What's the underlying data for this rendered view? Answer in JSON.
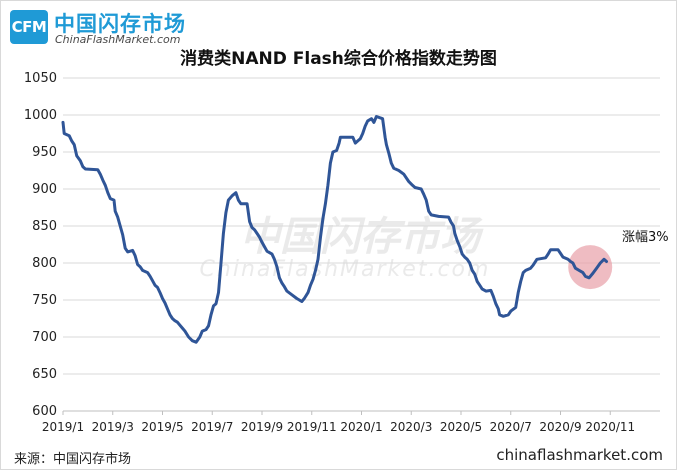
{
  "brand": {
    "logo_mark": "CFM",
    "name_cn": "中国闪存市场",
    "name_en": "ChinaFlashMarket.com"
  },
  "watermark": {
    "text_cn": "中国闪存市场",
    "text_en": "ChinaFlashMarket.com"
  },
  "footer": {
    "source": "来源：中国闪存市场",
    "site": "chinaflashmarket.com"
  },
  "colors": {
    "line": "#2f5597",
    "highlight": "#e8a0a8",
    "brand": "#1f9ad6"
  },
  "chart_data": {
    "type": "line",
    "title": "消费类NAND Flash综合价格指数走势图",
    "xlabel": "",
    "ylabel": "",
    "ylim": [
      600,
      1050
    ],
    "yticks": [
      600,
      650,
      700,
      750,
      800,
      850,
      900,
      950,
      1000,
      1050
    ],
    "xlim": [
      0,
      24
    ],
    "xticks": [
      {
        "x": 0,
        "label": "2019/1"
      },
      {
        "x": 2,
        "label": "2019/3"
      },
      {
        "x": 4,
        "label": "2019/5"
      },
      {
        "x": 6,
        "label": "2019/7"
      },
      {
        "x": 8,
        "label": "2019/9"
      },
      {
        "x": 10,
        "label": "2019/11"
      },
      {
        "x": 12,
        "label": "2020/1"
      },
      {
        "x": 14,
        "label": "2020/3"
      },
      {
        "x": 16,
        "label": "2020/5"
      },
      {
        "x": 18,
        "label": "2020/7"
      },
      {
        "x": 20,
        "label": "2020/9"
      },
      {
        "x": 22,
        "label": "2020/11"
      }
    ],
    "grid": "horizontal",
    "annotation": {
      "text": "涨幅3%",
      "x": 22.8,
      "y": 790
    },
    "series": [
      {
        "points": [
          [
            0.0,
            990
          ],
          [
            0.05,
            975
          ],
          [
            0.25,
            972
          ],
          [
            0.35,
            965
          ],
          [
            0.45,
            960
          ],
          [
            0.55,
            945
          ],
          [
            0.7,
            938
          ],
          [
            0.8,
            930
          ],
          [
            0.9,
            927
          ],
          [
            1.4,
            926
          ],
          [
            1.5,
            920
          ],
          [
            1.6,
            912
          ],
          [
            1.7,
            905
          ],
          [
            1.8,
            895
          ],
          [
            1.9,
            887
          ],
          [
            2.05,
            885
          ],
          [
            2.1,
            870
          ],
          [
            2.2,
            862
          ],
          [
            2.3,
            850
          ],
          [
            2.4,
            838
          ],
          [
            2.5,
            820
          ],
          [
            2.6,
            815
          ],
          [
            2.8,
            817
          ],
          [
            2.9,
            810
          ],
          [
            3.0,
            798
          ],
          [
            3.1,
            795
          ],
          [
            3.2,
            790
          ],
          [
            3.4,
            787
          ],
          [
            3.5,
            782
          ],
          [
            3.6,
            776
          ],
          [
            3.7,
            770
          ],
          [
            3.8,
            767
          ],
          [
            3.9,
            760
          ],
          [
            4.0,
            752
          ],
          [
            4.1,
            746
          ],
          [
            4.2,
            738
          ],
          [
            4.3,
            730
          ],
          [
            4.4,
            725
          ],
          [
            4.5,
            722
          ],
          [
            4.6,
            720
          ],
          [
            4.7,
            716
          ],
          [
            4.8,
            712
          ],
          [
            4.9,
            708
          ],
          [
            5.05,
            700
          ],
          [
            5.2,
            695
          ],
          [
            5.35,
            693
          ],
          [
            5.5,
            700
          ],
          [
            5.6,
            708
          ],
          [
            5.75,
            710
          ],
          [
            5.85,
            715
          ],
          [
            5.95,
            730
          ],
          [
            6.05,
            742
          ],
          [
            6.15,
            745
          ],
          [
            6.25,
            760
          ],
          [
            6.35,
            800
          ],
          [
            6.45,
            840
          ],
          [
            6.55,
            868
          ],
          [
            6.65,
            885
          ],
          [
            6.8,
            891
          ],
          [
            6.95,
            895
          ],
          [
            7.05,
            885
          ],
          [
            7.15,
            880
          ],
          [
            7.4,
            880
          ],
          [
            7.5,
            856
          ],
          [
            7.6,
            848
          ],
          [
            7.7,
            845
          ],
          [
            7.8,
            840
          ],
          [
            7.9,
            835
          ],
          [
            8.0,
            828
          ],
          [
            8.1,
            822
          ],
          [
            8.2,
            816
          ],
          [
            8.4,
            812
          ],
          [
            8.5,
            805
          ],
          [
            8.6,
            795
          ],
          [
            8.7,
            780
          ],
          [
            8.8,
            773
          ],
          [
            8.9,
            768
          ],
          [
            9.0,
            762
          ],
          [
            9.2,
            757
          ],
          [
            9.4,
            752
          ],
          [
            9.6,
            748
          ],
          [
            9.7,
            752
          ],
          [
            9.85,
            760
          ],
          [
            9.95,
            770
          ],
          [
            10.05,
            778
          ],
          [
            10.15,
            790
          ],
          [
            10.25,
            805
          ],
          [
            10.35,
            835
          ],
          [
            10.45,
            860
          ],
          [
            10.55,
            880
          ],
          [
            10.65,
            905
          ],
          [
            10.75,
            935
          ],
          [
            10.85,
            950
          ],
          [
            11.0,
            952
          ],
          [
            11.1,
            962
          ],
          [
            11.15,
            970
          ],
          [
            11.65,
            970
          ],
          [
            11.75,
            962
          ],
          [
            11.85,
            965
          ],
          [
            11.95,
            968
          ],
          [
            12.05,
            975
          ],
          [
            12.15,
            985
          ],
          [
            12.25,
            992
          ],
          [
            12.4,
            995
          ],
          [
            12.5,
            990
          ],
          [
            12.6,
            998
          ],
          [
            12.85,
            995
          ],
          [
            12.95,
            970
          ],
          [
            13.0,
            960
          ],
          [
            13.1,
            948
          ],
          [
            13.2,
            935
          ],
          [
            13.3,
            928
          ],
          [
            13.5,
            925
          ],
          [
            13.7,
            920
          ],
          [
            13.9,
            910
          ],
          [
            14.05,
            905
          ],
          [
            14.15,
            902
          ],
          [
            14.4,
            900
          ],
          [
            14.5,
            893
          ],
          [
            14.6,
            885
          ],
          [
            14.7,
            870
          ],
          [
            14.8,
            865
          ],
          [
            15.1,
            863
          ],
          [
            15.5,
            862
          ],
          [
            15.6,
            855
          ],
          [
            15.7,
            850
          ],
          [
            15.75,
            840
          ],
          [
            15.85,
            830
          ],
          [
            15.95,
            822
          ],
          [
            16.05,
            812
          ],
          [
            16.15,
            808
          ],
          [
            16.25,
            805
          ],
          [
            16.35,
            800
          ],
          [
            16.45,
            790
          ],
          [
            16.55,
            785
          ],
          [
            16.65,
            775
          ],
          [
            16.75,
            770
          ],
          [
            16.85,
            765
          ],
          [
            17.0,
            762
          ],
          [
            17.2,
            763
          ],
          [
            17.3,
            755
          ],
          [
            17.4,
            745
          ],
          [
            17.5,
            738
          ],
          [
            17.55,
            730
          ],
          [
            17.7,
            728
          ],
          [
            17.9,
            730
          ],
          [
            18.0,
            735
          ],
          [
            18.2,
            740
          ],
          [
            18.3,
            760
          ],
          [
            18.4,
            775
          ],
          [
            18.5,
            787
          ],
          [
            18.6,
            790
          ],
          [
            18.8,
            793
          ],
          [
            18.9,
            797
          ],
          [
            19.05,
            805
          ],
          [
            19.4,
            807
          ],
          [
            19.5,
            812
          ],
          [
            19.6,
            818
          ],
          [
            19.9,
            818
          ],
          [
            20.0,
            813
          ],
          [
            20.1,
            808
          ],
          [
            20.3,
            805
          ],
          [
            20.4,
            802
          ],
          [
            20.5,
            800
          ],
          [
            20.6,
            793
          ],
          [
            20.75,
            790
          ],
          [
            20.9,
            787
          ],
          [
            21.0,
            782
          ],
          [
            21.15,
            780
          ],
          [
            21.3,
            786
          ],
          [
            21.45,
            793
          ],
          [
            21.6,
            800
          ],
          [
            21.75,
            805
          ],
          [
            21.85,
            802
          ]
        ]
      }
    ]
  }
}
